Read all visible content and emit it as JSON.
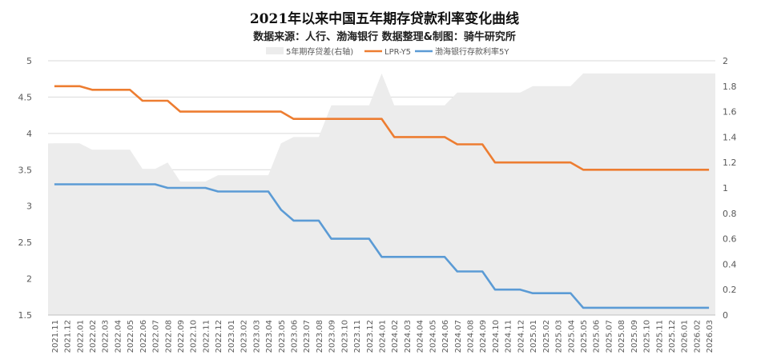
{
  "chart_data": {
    "type": "line",
    "title": "2021年以来中国五年期存贷款利率变化曲线",
    "subtitle": "数据来源：人行、渤海银行 数据整理&制图：骑牛研究所",
    "categories": [
      "2021.11",
      "2021.12",
      "2022.01",
      "2022.02",
      "2022.03",
      "2022.04",
      "2022.05",
      "2022.06",
      "2022.07",
      "2022.08",
      "2022.09",
      "2022.10",
      "2022.11",
      "2022.12",
      "2023.01",
      "2023.02",
      "2023.03",
      "2023.04",
      "2023.05",
      "2023.06",
      "2023.07",
      "2023.08",
      "2023.09",
      "2023.10",
      "2023.11",
      "2023.12",
      "2024.01",
      "2024.02",
      "2024.03",
      "2024.04",
      "2024.05",
      "2024.06",
      "2024.07",
      "2024.08",
      "2024.09",
      "2024.10",
      "2024.11",
      "2024.12",
      "2025.01",
      "2025.02",
      "2025.03",
      "2025.04",
      "2025.05",
      "2025.06",
      "2025.07",
      "2025.08",
      "2025.09",
      "2025.10",
      "2025.11",
      "2025.12",
      "2026.01",
      "2026.02",
      "2026.03"
    ],
    "y_left": {
      "min": 1.5,
      "max": 5,
      "ticks": [
        "1.5",
        "2",
        "2.5",
        "3",
        "3.5",
        "4",
        "4.5",
        "5"
      ]
    },
    "y_right": {
      "min": 0,
      "max": 2,
      "ticks": [
        "0",
        "0.2",
        "0.4",
        "0.6",
        "0.8",
        "1",
        "1.2",
        "1.4",
        "1.6",
        "1.8",
        "2"
      ]
    },
    "legend_position": "top",
    "series": [
      {
        "name": "5年期存贷差(右轴)",
        "type": "area",
        "axis": "right",
        "color": "#ececec",
        "values": [
          1.35,
          1.35,
          1.35,
          1.3,
          1.3,
          1.3,
          1.3,
          1.15,
          1.15,
          1.2,
          1.05,
          1.05,
          1.05,
          1.1,
          1.1,
          1.1,
          1.1,
          1.1,
          1.35,
          1.4,
          1.4,
          1.4,
          1.65,
          1.65,
          1.65,
          1.65,
          1.9,
          1.65,
          1.65,
          1.65,
          1.65,
          1.65,
          1.75,
          1.75,
          1.75,
          1.75,
          1.75,
          1.75,
          1.8,
          1.8,
          1.8,
          1.8,
          1.9,
          1.9,
          1.9,
          1.9,
          1.9,
          1.9,
          1.9,
          1.9,
          1.9,
          1.9,
          1.9
        ]
      },
      {
        "name": "LPR-Y5",
        "type": "line",
        "axis": "left",
        "color": "#ed7d31",
        "values": [
          4.65,
          4.65,
          4.65,
          4.6,
          4.6,
          4.6,
          4.6,
          4.45,
          4.45,
          4.45,
          4.3,
          4.3,
          4.3,
          4.3,
          4.3,
          4.3,
          4.3,
          4.3,
          4.3,
          4.2,
          4.2,
          4.2,
          4.2,
          4.2,
          4.2,
          4.2,
          4.2,
          3.95,
          3.95,
          3.95,
          3.95,
          3.95,
          3.85,
          3.85,
          3.85,
          3.6,
          3.6,
          3.6,
          3.6,
          3.6,
          3.6,
          3.6,
          3.5,
          3.5,
          3.5,
          3.5,
          3.5,
          3.5,
          3.5,
          3.5,
          3.5,
          3.5,
          3.5
        ]
      },
      {
        "name": "渤海银行存款利率5Y",
        "type": "line",
        "axis": "left",
        "color": "#5b9bd5",
        "values": [
          3.3,
          3.3,
          3.3,
          3.3,
          3.3,
          3.3,
          3.3,
          3.3,
          3.3,
          3.25,
          3.25,
          3.25,
          3.25,
          3.2,
          3.2,
          3.2,
          3.2,
          3.2,
          2.95,
          2.8,
          2.8,
          2.8,
          2.55,
          2.55,
          2.55,
          2.55,
          2.3,
          2.3,
          2.3,
          2.3,
          2.3,
          2.3,
          2.1,
          2.1,
          2.1,
          1.85,
          1.85,
          1.85,
          1.8,
          1.8,
          1.8,
          1.8,
          1.6,
          1.6,
          1.6,
          1.6,
          1.6,
          1.6,
          1.6,
          1.6,
          1.6,
          1.6,
          1.6
        ]
      }
    ]
  }
}
